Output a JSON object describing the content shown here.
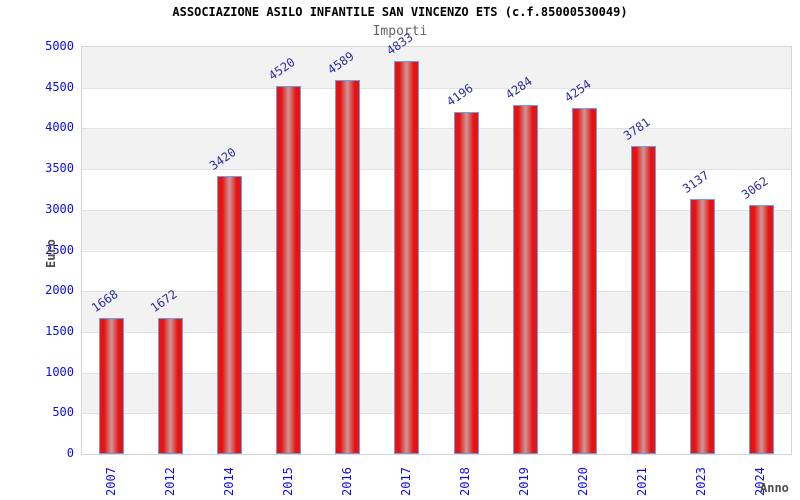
{
  "chart_data": {
    "type": "bar",
    "title": "ASSOCIAZIONE ASILO INFANTILE SAN VINCENZO ETS (c.f.85000530049)",
    "subtitle": "Importi",
    "xlabel": "Anno",
    "ylabel": "Euro",
    "categories": [
      "2007",
      "2012",
      "2014",
      "2015",
      "2016",
      "2017",
      "2018",
      "2019",
      "2020",
      "2021",
      "2023",
      "2024"
    ],
    "values": [
      1668,
      1672,
      3420,
      4520,
      4589,
      4833,
      4196,
      4284,
      4254,
      3781,
      3137,
      3062
    ],
    "ylim": [
      0,
      5000
    ],
    "ytick_step": 500,
    "ytick_labels": [
      "0",
      "500",
      "1000",
      "1500",
      "2000",
      "2500",
      "3000",
      "3500",
      "4000",
      "4500",
      "5000"
    ],
    "grid": "horizontal-bands-alternating",
    "legend": "none",
    "colors": {
      "bar_edge_fill": "#e81414",
      "bar_center_fill": "#cf9090",
      "bar_border": "#6b9fe4",
      "value_label": "#2e2e9e",
      "axis_tick_label": "#0f0fe0",
      "axis_title": "#4d4d4d",
      "band_gray": "#f2f2f2",
      "band_white": "#ffffff",
      "gridline": "#e2e2e2",
      "plot_border": "#d6d6d6",
      "title": "#000000",
      "subtitle": "#666666"
    }
  }
}
